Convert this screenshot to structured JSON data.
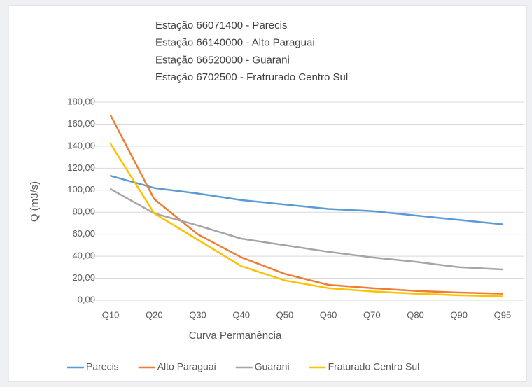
{
  "chart_data": {
    "type": "line",
    "title": [
      "Estação 66071400 - Parecis",
      "Estação 66140000 - Alto Paraguai",
      "Estação 66520000 - Guarani",
      "Estação 6702500 - Fratrurado Centro Sul"
    ],
    "x_label": "Curva Permanência",
    "y_label": "Q (m3/s)",
    "categories": [
      "Q10",
      "Q20",
      "Q30",
      "Q40",
      "Q50",
      "Q60",
      "Q70",
      "Q80",
      "Q90",
      "Q95"
    ],
    "series": [
      {
        "name": "Parecis",
        "color": "#5b9bd5",
        "values": [
          113,
          102,
          97,
          91,
          87,
          83,
          81,
          77,
          73,
          69
        ]
      },
      {
        "name": "Alto Paraguai",
        "color": "#ed7d31",
        "values": [
          168,
          92,
          60,
          39,
          24,
          14,
          11,
          8.5,
          7,
          6
        ]
      },
      {
        "name": "Guarani",
        "color": "#a5a5a5",
        "values": [
          101,
          79,
          68,
          56,
          50,
          44,
          39,
          35,
          30,
          28
        ]
      },
      {
        "name": "Fraturado Centro Sul",
        "color": "#ffc000",
        "values": [
          142,
          79,
          55,
          31,
          18,
          11,
          8,
          6,
          4.5,
          3.5
        ]
      }
    ],
    "ylim": [
      0,
      180
    ],
    "yticks": [
      {
        "value": 0,
        "label": "0,00"
      },
      {
        "value": 20,
        "label": "20,00"
      },
      {
        "value": 40,
        "label": "40,00"
      },
      {
        "value": 60,
        "label": "60,00"
      },
      {
        "value": 80,
        "label": "80,00"
      },
      {
        "value": 100,
        "label": "100,00"
      },
      {
        "value": 120,
        "label": "120,00"
      },
      {
        "value": 140,
        "label": "140,00"
      },
      {
        "value": 160,
        "label": "160,00"
      },
      {
        "value": 180,
        "label": "180,00"
      }
    ],
    "grid": true,
    "legend": "bottom"
  }
}
